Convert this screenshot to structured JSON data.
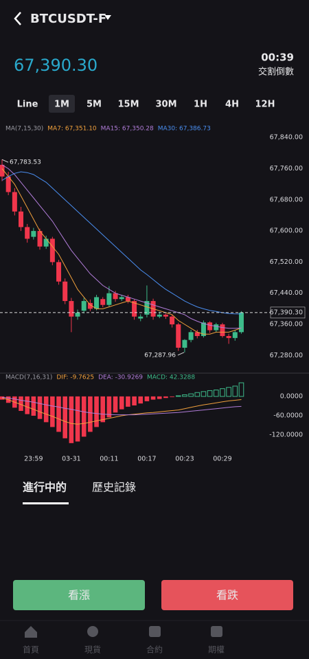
{
  "header": {
    "symbol": "BTCUSDT-F",
    "price": "67,390.30",
    "countdown": "00:39",
    "countdown_label": "交割倒數"
  },
  "intervals": [
    "Line",
    "1M",
    "5M",
    "15M",
    "30M",
    "1H",
    "4H",
    "12H"
  ],
  "active_interval": 1,
  "chart_data": [
    {
      "type": "candlestick",
      "legend_title": "MA(7,15,30)",
      "up_color": "#3dbb8a",
      "down_color": "#f0364c",
      "categories": [
        null,
        null,
        null,
        null,
        null,
        "23:59",
        null,
        null,
        null,
        null,
        null,
        "03-31",
        null,
        null,
        null,
        null,
        null,
        "00:11",
        null,
        null,
        null,
        null,
        null,
        "00:17",
        null,
        null,
        null,
        null,
        null,
        "00:23",
        null,
        null,
        null,
        null,
        null,
        "00:29",
        null,
        null,
        null
      ],
      "open": [
        67770,
        67740,
        67700,
        67650,
        67610,
        67585,
        67600,
        67560,
        67580,
        67520,
        67470,
        67420,
        67380,
        67395,
        67415,
        67400,
        67425,
        67410,
        67440,
        67425,
        67430,
        67420,
        67375,
        67385,
        67420,
        67380,
        67385,
        67380,
        67360,
        67300,
        67320,
        67340,
        67330,
        67365,
        67345,
        67360,
        67330,
        67325,
        67340
      ],
      "close": [
        67740,
        67700,
        67650,
        67610,
        67580,
        67600,
        67560,
        67580,
        67520,
        67470,
        67420,
        67380,
        67390,
        67420,
        67400,
        67430,
        67410,
        67440,
        67425,
        67430,
        67420,
        67380,
        67380,
        67420,
        67380,
        67385,
        67380,
        67360,
        67300,
        67320,
        67340,
        67330,
        67365,
        67345,
        67360,
        67330,
        67325,
        67340,
        67390.3
      ],
      "high": [
        67783.53,
        67752,
        67710,
        67662,
        67618,
        67608,
        67606,
        67588,
        67585,
        67526,
        67478,
        67428,
        67398,
        67428,
        67424,
        67436,
        67430,
        67458,
        67446,
        67436,
        67436,
        67424,
        67386,
        67460,
        67426,
        67392,
        67388,
        67384,
        67364,
        67322,
        67346,
        67346,
        67370,
        67368,
        67364,
        67364,
        67336,
        67346,
        67394
      ],
      "low": [
        67728,
        67692,
        67640,
        67600,
        67570,
        67578,
        67552,
        67554,
        67512,
        67462,
        67412,
        67340,
        67372,
        67388,
        67394,
        67396,
        67404,
        67406,
        67418,
        67420,
        67414,
        67372,
        67368,
        67378,
        67372,
        67376,
        67374,
        67352,
        67292,
        67287.96,
        67314,
        67324,
        67326,
        67338,
        67340,
        67326,
        67310,
        67318,
        67336
      ],
      "series": [
        {
          "name": "MA7: 67,351.10",
          "color": "#f0a03c",
          "values": [
            67760,
            67740,
            67720,
            67690,
            67660,
            67630,
            67600,
            67580,
            67560,
            67540,
            67510,
            67480,
            67450,
            67430,
            67410,
            67400,
            67400,
            67405,
            67410,
            67415,
            67420,
            67415,
            67410,
            67405,
            67400,
            67395,
            67390,
            67385,
            67370,
            67360,
            67350,
            67340,
            67335,
            67335,
            67340,
            67340,
            67340,
            67345,
            67351.1
          ]
        },
        {
          "name": "MA15: 67,350.28",
          "color": "#b07cd8",
          "values": [
            67770,
            67760,
            67745,
            67725,
            67705,
            67685,
            67665,
            67645,
            67625,
            67600,
            67575,
            67550,
            67530,
            67510,
            67490,
            67475,
            67460,
            67450,
            67440,
            67435,
            67430,
            67425,
            67420,
            67415,
            67410,
            67405,
            67400,
            67395,
            67390,
            67385,
            67375,
            67368,
            67362,
            67358,
            67355,
            67352,
            67350,
            67350,
            67350.28
          ]
        },
        {
          "name": "MA30: 67,386.73",
          "color": "#4a8ef0",
          "values": [
            67730,
            67740,
            67748,
            67752,
            67750,
            67745,
            67735,
            67725,
            67710,
            67695,
            67680,
            67665,
            67650,
            67635,
            67620,
            67605,
            67590,
            67575,
            67560,
            67545,
            67530,
            67515,
            67500,
            67488,
            67475,
            67462,
            67450,
            67440,
            67430,
            67420,
            67412,
            67405,
            67400,
            67396,
            67393,
            67390,
            67388,
            67387,
            67386.73
          ]
        }
      ],
      "ylim": [
        67240,
        67858
      ],
      "yticks": [
        {
          "value": 67840,
          "label": "67,840.00"
        },
        {
          "value": 67760,
          "label": "67,760.00"
        },
        {
          "value": 67680,
          "label": "67,680.00"
        },
        {
          "value": 67600,
          "label": "67,600.00"
        },
        {
          "value": 67520,
          "label": "67,520.00"
        },
        {
          "value": 67440,
          "label": "67,440.00"
        },
        {
          "value": 67360,
          "label": "67,360.00"
        },
        {
          "value": 67280,
          "label": "67,280.00"
        }
      ],
      "high_marker": {
        "value": 67783.53,
        "label": "67,783.53"
      },
      "low_marker": {
        "value": 67287.96,
        "label": "67,287.96"
      },
      "current_price": {
        "value": 67390.3,
        "label": "67,390.30"
      }
    },
    {
      "type": "macd",
      "legend_title": "MACD(7,16,31)",
      "up_color": "#3dbb8a",
      "down_color": "#f0364c",
      "values": [
        -10,
        -20,
        -35,
        -45,
        -55,
        -60,
        -70,
        -80,
        -95,
        -110,
        -130,
        -145,
        -140,
        -125,
        -110,
        -95,
        -80,
        -65,
        -50,
        -40,
        -32,
        -28,
        -22,
        -15,
        -10,
        -8,
        -5,
        -2,
        2,
        5,
        8,
        12,
        15,
        18,
        20,
        24,
        28,
        32,
        42.3288
      ],
      "value_name": "MACD: 42.3288",
      "value_color": "#3dbb8a",
      "series": [
        {
          "name": "DIF: -9.7625",
          "color": "#f0a03c",
          "values": [
            -5,
            -10,
            -18,
            -25,
            -33,
            -40,
            -48,
            -55,
            -62,
            -70,
            -78,
            -84,
            -86,
            -84,
            -80,
            -76,
            -72,
            -68,
            -64,
            -60,
            -57,
            -55,
            -53,
            -51,
            -50,
            -48,
            -46,
            -44,
            -42,
            -38,
            -34,
            -30,
            -26,
            -23,
            -20,
            -17,
            -14,
            -12,
            -9.7625
          ]
        },
        {
          "name": "DEA: -30.9269",
          "color": "#b07cd8",
          "values": [
            -3,
            -5,
            -8,
            -12,
            -15,
            -18,
            -22,
            -26,
            -30,
            -33,
            -37,
            -40,
            -44,
            -48,
            -51,
            -53,
            -55,
            -56,
            -57,
            -57,
            -57,
            -57,
            -56,
            -55,
            -54,
            -53,
            -52,
            -51,
            -50,
            -48,
            -46,
            -44,
            -42,
            -40,
            -38,
            -36,
            -34,
            -32,
            -30.9269
          ]
        }
      ],
      "ylim": [
        -156,
        36
      ],
      "yticks": [
        {
          "value": 0,
          "label": "0.0000"
        },
        {
          "value": -60,
          "label": "-60.0000"
        },
        {
          "value": -120,
          "label": "-120.0000"
        }
      ]
    }
  ],
  "tabs": [
    "進行中的",
    "歷史記錄"
  ],
  "buttons": [
    "看漲",
    "看跌"
  ],
  "nav": [
    "首頁",
    "現貨",
    "合約",
    "期權"
  ]
}
